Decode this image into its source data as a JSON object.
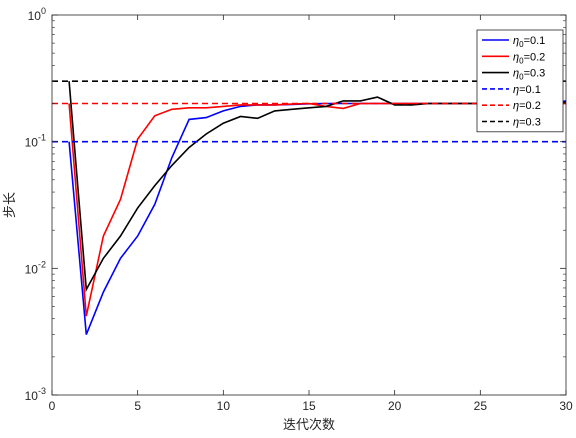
{
  "chart_data": {
    "type": "line",
    "title": "",
    "xlabel": "迭代次数",
    "ylabel": "步长",
    "xlim": [
      0,
      30
    ],
    "ylim": [
      0.001,
      1
    ],
    "yscale": "log",
    "grid": false,
    "legend_position": "top-right",
    "xticks": [
      "0",
      "5",
      "10",
      "15",
      "20",
      "25",
      "30"
    ],
    "xtick_values": [
      0,
      5,
      10,
      15,
      20,
      25,
      30
    ],
    "yticks": [
      {
        "base": "10",
        "exp": "0",
        "value": 1
      },
      {
        "base": "10",
        "exp": "-1",
        "value": 0.1
      },
      {
        "base": "10",
        "exp": "-2",
        "value": 0.01
      },
      {
        "base": "10",
        "exp": "-3",
        "value": 0.001
      }
    ],
    "series": [
      {
        "name": "η0=0.1",
        "sym": "η",
        "sub": "0",
        "tail": "=0.1",
        "color": "#0000ff",
        "dash": "solid",
        "x": [
          1,
          2,
          3,
          4,
          5,
          6,
          7,
          8,
          9,
          10,
          11,
          12,
          13,
          14,
          15,
          16,
          17,
          18,
          19,
          20,
          21,
          22,
          23,
          24,
          25,
          26,
          27,
          28,
          29,
          30
        ],
        "y": [
          0.1,
          0.003,
          0.0065,
          0.012,
          0.018,
          0.032,
          0.075,
          0.15,
          0.155,
          0.175,
          0.19,
          0.195,
          0.195,
          0.197,
          0.199,
          0.2,
          0.2,
          0.2,
          0.2,
          0.2,
          0.2,
          0.2,
          0.2,
          0.2,
          0.2,
          0.2,
          0.2,
          0.2,
          0.2,
          0.21
        ]
      },
      {
        "name": "η0=0.2",
        "sym": "η",
        "sub": "0",
        "tail": "=0.2",
        "color": "#ff0000",
        "dash": "solid",
        "x": [
          1,
          2,
          3,
          4,
          5,
          6,
          7,
          8,
          9,
          10,
          11,
          12,
          13,
          14,
          15,
          16,
          17,
          18,
          19,
          20,
          21,
          22,
          23,
          24,
          25,
          26,
          27,
          28,
          29,
          30
        ],
        "y": [
          0.2,
          0.0042,
          0.018,
          0.035,
          0.105,
          0.16,
          0.18,
          0.185,
          0.185,
          0.19,
          0.195,
          0.195,
          0.195,
          0.198,
          0.2,
          0.19,
          0.183,
          0.2,
          0.2,
          0.2,
          0.2,
          0.2,
          0.2,
          0.2,
          0.2,
          0.2,
          0.2,
          0.2,
          0.2,
          0.2
        ]
      },
      {
        "name": "η0=0.3",
        "sym": "η",
        "sub": "0",
        "tail": "=0.3",
        "color": "#000000",
        "dash": "solid",
        "x": [
          1,
          2,
          3,
          4,
          5,
          6,
          7,
          8,
          9,
          10,
          11,
          12,
          13,
          14,
          15,
          16,
          17,
          18,
          19,
          20,
          21,
          22,
          23,
          24,
          25,
          26,
          27,
          28,
          29,
          30
        ],
        "y": [
          0.3,
          0.0068,
          0.012,
          0.018,
          0.03,
          0.045,
          0.065,
          0.09,
          0.115,
          0.14,
          0.158,
          0.153,
          0.175,
          0.18,
          0.185,
          0.19,
          0.21,
          0.21,
          0.225,
          0.195,
          0.195,
          0.2,
          0.2,
          0.2,
          0.2,
          0.21,
          0.205,
          0.2,
          0.205,
          0.205
        ]
      },
      {
        "name": "η=0.1",
        "sym": "η",
        "sub": "",
        "tail": "=0.1",
        "color": "#0000ff",
        "dash": "dashed",
        "x": [
          0,
          30
        ],
        "y": [
          0.1,
          0.1
        ]
      },
      {
        "name": "η=0.2",
        "sym": "η",
        "sub": "",
        "tail": "=0.2",
        "color": "#ff0000",
        "dash": "dashed",
        "x": [
          0,
          30
        ],
        "y": [
          0.2,
          0.2
        ]
      },
      {
        "name": "η=0.3",
        "sym": "η",
        "sub": "",
        "tail": "=0.3",
        "color": "#000000",
        "dash": "dashed",
        "x": [
          0,
          30
        ],
        "y": [
          0.3,
          0.3
        ]
      }
    ]
  }
}
